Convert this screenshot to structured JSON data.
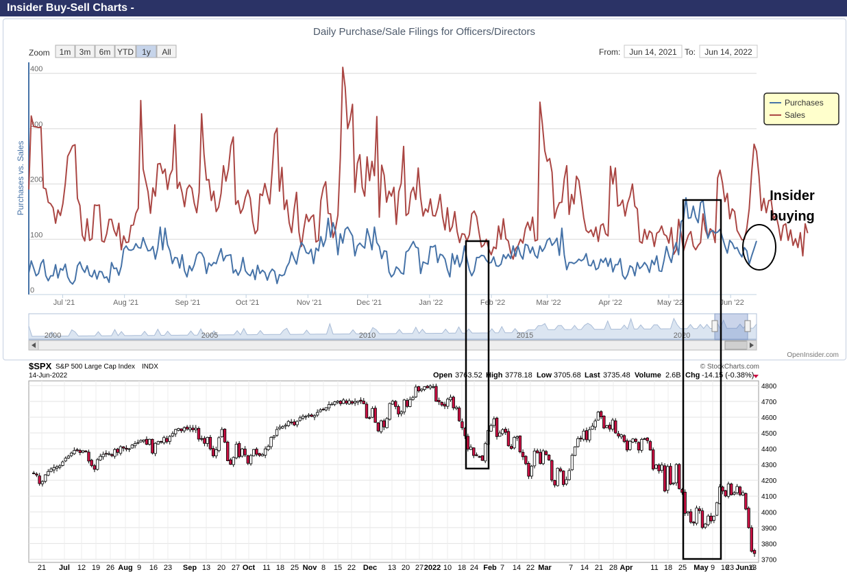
{
  "page": {
    "banner": "Insider Buy-Sell Charts -",
    "credit": "OpenInsider.com"
  },
  "colors": {
    "purchases": "#4572a7",
    "sales": "#aa4643",
    "up_candle": "#ffffff",
    "down_candle": "#cc1144",
    "banner": "#2b3366",
    "legend_bg": "#ffffcc"
  },
  "zoom": {
    "label": "Zoom",
    "buttons": [
      "1m",
      "3m",
      "6m",
      "YTD",
      "1y",
      "All"
    ],
    "selected": "1y"
  },
  "range": {
    "from_label": "From:",
    "from": "Jun 14, 2021",
    "to_label": "To:",
    "to": "Jun 14, 2022"
  },
  "annotation": {
    "line1": "Insider",
    "line2": "buying"
  },
  "chart_data": [
    {
      "type": "line",
      "title": "Daily Purchase/Sale Filings for Officers/Directors",
      "ylabel": "Purchases vs. Sales",
      "ylim": [
        0,
        420
      ],
      "y_ticks": [
        0,
        100,
        200,
        300,
        400
      ],
      "y_tick_labels": [
        "0",
        "100",
        "200",
        "300",
        "400"
      ],
      "x_tick_labels": [
        "Jul '21",
        "Aug '21",
        "Sep '21",
        "Oct '21",
        "Nov '21",
        "Dec '21",
        "Jan '22",
        "Feb '22",
        "Mar '22",
        "Apr '22",
        "May '22",
        "Jun '22"
      ],
      "legend": "top-right",
      "grid": true,
      "series": [
        {
          "name": "Purchases",
          "values": [
            39,
            61,
            48,
            34,
            38,
            56,
            63,
            34,
            25,
            34,
            34,
            54,
            30,
            47,
            44,
            55,
            32,
            23,
            19,
            26,
            52,
            59,
            47,
            40,
            52,
            35,
            32,
            44,
            28,
            42,
            41,
            30,
            32,
            22,
            58,
            47,
            48,
            35,
            51,
            82,
            88,
            81,
            80,
            82,
            92,
            85,
            84,
            103,
            90,
            79,
            80,
            87,
            64,
            84,
            122,
            81,
            120,
            90,
            79,
            56,
            67,
            66,
            48,
            72,
            43,
            32,
            52,
            43,
            54,
            72,
            77,
            75,
            66,
            38,
            57,
            52,
            58,
            56,
            70,
            83,
            61,
            70,
            71,
            72,
            39,
            45,
            35,
            44,
            67,
            43,
            37,
            34,
            45,
            27,
            53,
            38,
            44,
            40,
            26,
            39,
            46,
            42,
            20,
            36,
            34,
            36,
            50,
            58,
            77,
            65,
            55,
            79,
            94,
            88,
            76,
            74,
            82,
            56,
            84,
            79,
            105,
            87,
            100,
            138,
            104,
            130,
            114,
            72,
            110,
            93,
            118,
            122,
            114,
            106,
            70,
            88,
            93,
            88,
            84,
            119,
            103,
            81,
            122,
            94,
            87,
            65,
            79,
            78,
            41,
            32,
            37,
            50,
            46,
            39,
            37,
            77,
            80,
            88,
            96,
            86,
            84,
            38,
            59,
            57,
            55,
            87,
            86,
            89,
            58,
            73,
            71,
            64,
            45,
            32,
            74,
            55,
            71,
            50,
            61,
            88,
            65,
            45,
            34,
            43,
            67,
            67,
            71,
            70,
            62,
            57,
            58,
            68,
            52,
            51,
            55,
            72,
            65,
            73,
            65,
            88,
            69,
            88,
            72,
            64,
            91,
            89,
            75,
            86,
            71,
            66,
            88,
            78,
            85,
            98,
            102,
            89,
            94,
            102,
            71,
            120,
            72,
            45,
            58,
            58,
            56,
            59,
            64,
            61,
            64,
            74,
            53,
            52,
            62,
            45,
            48,
            64,
            58,
            66,
            51,
            65,
            41,
            54,
            54,
            65,
            35,
            28,
            36,
            52,
            49,
            34,
            58,
            47,
            51,
            58,
            52,
            40,
            62,
            54,
            70,
            43,
            42,
            62,
            87,
            70,
            58,
            81,
            94,
            72,
            132,
            136,
            175,
            138,
            139,
            160,
            140,
            130,
            166,
            170,
            135,
            102,
            113,
            116,
            111,
            113,
            118,
            103,
            88,
            75,
            98,
            93,
            83,
            85,
            75,
            68,
            85,
            79,
            55,
            70,
            83,
            97
          ]
        },
        {
          "name": "Sales",
          "values": [
            190,
            323,
            304,
            303,
            302,
            303,
            193,
            191,
            167,
            164,
            157,
            129,
            153,
            143,
            164,
            201,
            250,
            259,
            269,
            271,
            174,
            161,
            107,
            97,
            137,
            98,
            101,
            162,
            161,
            162,
            97,
            95,
            110,
            136,
            136,
            117,
            106,
            129,
            81,
            106,
            94,
            95,
            125,
            126,
            147,
            156,
            351,
            227,
            206,
            186,
            147,
            193,
            178,
            236,
            237,
            219,
            227,
            190,
            216,
            226,
            307,
            192,
            203,
            184,
            159,
            191,
            198,
            192,
            165,
            148,
            185,
            327,
            254,
            207,
            208,
            170,
            187,
            150,
            158,
            183,
            233,
            205,
            227,
            269,
            285,
            163,
            170,
            147,
            156,
            176,
            189,
            174,
            132,
            110,
            117,
            182,
            179,
            201,
            181,
            164,
            224,
            290,
            301,
            187,
            230,
            154,
            171,
            130,
            112,
            154,
            185,
            113,
            87,
            119,
            145,
            132,
            140,
            144,
            95,
            98,
            170,
            193,
            204,
            147,
            146,
            103,
            118,
            144,
            247,
            411,
            375,
            300,
            316,
            344,
            185,
            237,
            253,
            194,
            178,
            249,
            206,
            241,
            215,
            322,
            140,
            234,
            216,
            167,
            187,
            178,
            194,
            127,
            186,
            201,
            268,
            143,
            147,
            184,
            194,
            172,
            229,
            175,
            142,
            155,
            149,
            173,
            143,
            142,
            157,
            181,
            141,
            117,
            157,
            114,
            123,
            150,
            114,
            94,
            110,
            109,
            97,
            108,
            146,
            151,
            141,
            112,
            86,
            90,
            100,
            82,
            72,
            86,
            83,
            124,
            100,
            137,
            101,
            97,
            75,
            64,
            83,
            88,
            100,
            93,
            119,
            131,
            116,
            140,
            97,
            99,
            348,
            309,
            260,
            241,
            246,
            221,
            138,
            155,
            166,
            167,
            209,
            233,
            145,
            181,
            164,
            214,
            206,
            173,
            139,
            116,
            112,
            117,
            105,
            122,
            96,
            125,
            128,
            110,
            106,
            232,
            200,
            229,
            160,
            162,
            171,
            142,
            165,
            178,
            200,
            160,
            155,
            96,
            93,
            118,
            100,
            115,
            111,
            87,
            111,
            114,
            124,
            109,
            106,
            93,
            121,
            73,
            81,
            136,
            110,
            79,
            94,
            107,
            114,
            88,
            81,
            89,
            94,
            146,
            117,
            104,
            119,
            114,
            94,
            211,
            225,
            202,
            168,
            183,
            137,
            155,
            150,
            116,
            108,
            99,
            100,
            120,
            155,
            221,
            272,
            259,
            214,
            152,
            174,
            148,
            170,
            171,
            137,
            144,
            124,
            98,
            125,
            128,
            98,
            117,
            89,
            101,
            85,
            112,
            70,
            128,
            111
          ]
        }
      ],
      "navigator": {
        "tick_labels": [
          "2000",
          "2005",
          "2010",
          "2015",
          "2020"
        ]
      }
    },
    {
      "type": "candlestick",
      "symbol": "$SPX",
      "name": "S&P 500 Large Cap Index",
      "exchange": "INDX",
      "date": "14-Jun-2022",
      "source": "© StockCharts.com",
      "quote": {
        "open_label": "Open",
        "open": "3763.52",
        "high_label": "High",
        "high": "3778.18",
        "low_label": "Low",
        "low": "3705.68",
        "last_label": "Last",
        "last": "3735.48",
        "volume_label": "Volume",
        "volume": "2.6B",
        "chg_label": "Chg",
        "chg": "-14.15 (-0.38%)"
      },
      "ylim": [
        3680,
        4830
      ],
      "y_ticks": [
        3700,
        3800,
        3900,
        4000,
        4100,
        4200,
        4300,
        4400,
        4500,
        4600,
        4700,
        4800
      ],
      "y_tick_labels": [
        "3700",
        "3800",
        "3900",
        "4000",
        "4100",
        "4200",
        "4300",
        "4400",
        "4500",
        "4600",
        "4700",
        "4800"
      ],
      "x_tick_labels": [
        "21",
        "Jul",
        "12",
        "19",
        "26",
        "Aug",
        "9",
        "16",
        "23",
        "Sep",
        "13",
        "20",
        "27",
        "Oct",
        "11",
        "18",
        "25",
        "Nov",
        "8",
        "15",
        "22",
        "Dec",
        "13",
        "20",
        "27",
        "2022",
        "10",
        "18",
        "24",
        "Feb",
        "7",
        "14",
        "22",
        "Mar",
        "7",
        "14",
        "21",
        "28",
        "Apr",
        "11",
        "18",
        "25",
        "May",
        "9",
        "16",
        "23",
        "Jun",
        "6",
        "13"
      ],
      "closes": [
        4246,
        4243,
        4233,
        4179,
        4192,
        4235,
        4256,
        4271,
        4281,
        4286,
        4292,
        4317,
        4340,
        4353,
        4373,
        4389,
        4388,
        4376,
        4387,
        4380,
        4322,
        4293,
        4270,
        4331,
        4352,
        4365,
        4366,
        4369,
        4356,
        4395,
        4377,
        4413,
        4404,
        4397,
        4400,
        4423,
        4433,
        4439,
        4453,
        4456,
        4428,
        4460,
        4373,
        4434,
        4445,
        4442,
        4471,
        4444,
        4478,
        4496,
        4522,
        4528,
        4514,
        4533,
        4525,
        4531,
        4520,
        4530,
        4461,
        4460,
        4434,
        4472,
        4399,
        4355,
        4394,
        4470,
        4522,
        4442,
        4324,
        4301,
        4345,
        4429,
        4349,
        4399,
        4361,
        4308,
        4357,
        4395,
        4365,
        4358,
        4364,
        4399,
        4415,
        4472,
        4480,
        4522,
        4536,
        4541,
        4549,
        4573,
        4567,
        4551,
        4574,
        4596,
        4606,
        4605,
        4613,
        4605,
        4610,
        4630,
        4646,
        4649,
        4660,
        4680,
        4682,
        4697,
        4701,
        4685,
        4709,
        4689,
        4704,
        4688,
        4699,
        4702,
        4701,
        4685,
        4595,
        4594,
        4655,
        4567,
        4513,
        4577,
        4538,
        4591,
        4687,
        4701,
        4668,
        4620,
        4634,
        4709,
        4668,
        4712,
        4725,
        4791,
        4766,
        4778,
        4793,
        4786,
        4797,
        4793,
        4701,
        4697,
        4677,
        4670,
        4714,
        4726,
        4659,
        4663,
        4577,
        4533,
        4482,
        4397,
        4410,
        4357,
        4356,
        4350,
        4326,
        4432,
        4516,
        4547,
        4589,
        4477,
        4500,
        4521,
        4504,
        4419,
        4402,
        4472,
        4476,
        4380,
        4349,
        4305,
        4226,
        4289,
        4385,
        4374,
        4306,
        4387,
        4363,
        4329,
        4201,
        4170,
        4277,
        4259,
        4173,
        4204,
        4262,
        4358,
        4412,
        4464,
        4462,
        4512,
        4457,
        4521,
        4543,
        4576,
        4632,
        4602,
        4531,
        4546,
        4525,
        4582,
        4500,
        4481,
        4488,
        4446,
        4392,
        4447,
        4462,
        4446,
        4392,
        4459,
        4463,
        4451,
        4392,
        4271,
        4297,
        4260,
        4297,
        4132,
        4287,
        4175,
        4183,
        4300,
        4147,
        4123,
        3991,
        4001,
        3935,
        3930,
        4024,
        4008,
        3901,
        3923,
        3974,
        3942,
        3973,
        4058,
        4158,
        4132,
        4101,
        4177,
        4108,
        4121,
        4161,
        4109,
        4122,
        4018,
        3900,
        3750,
        3736
      ]
    }
  ]
}
